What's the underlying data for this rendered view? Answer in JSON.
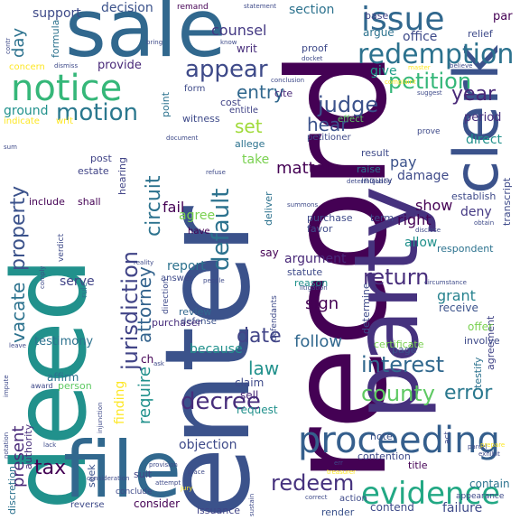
{
  "words": [
    {
      "text": "record",
      "color": "#440154",
      "vertical": true
    },
    {
      "text": "party",
      "color": "#46327e",
      "vertical": true
    },
    {
      "text": "enter",
      "color": "#3b528b",
      "vertical": true
    },
    {
      "text": "deed",
      "color": "#21918c",
      "vertical": true
    },
    {
      "text": "clerk",
      "color": "#3b528b",
      "vertical": true
    },
    {
      "text": "sale",
      "color": "#31688e",
      "vertical": false
    },
    {
      "text": "file",
      "color": "#31688e",
      "vertical": false
    },
    {
      "text": "proceeding",
      "color": "#355f8d",
      "vertical": false
    },
    {
      "text": "evidence",
      "color": "#22a884",
      "vertical": false
    },
    {
      "text": "issue",
      "color": "#31688e",
      "vertical": false
    },
    {
      "text": "notice",
      "color": "#35b779",
      "vertical": false
    },
    {
      "text": "redemption",
      "color": "#2c728e",
      "vertical": false
    },
    {
      "text": "default",
      "color": "#2c728e",
      "vertical": true
    },
    {
      "text": "motion",
      "color": "#2a788e",
      "vertical": false
    },
    {
      "text": "appear",
      "color": "#3e4a89",
      "vertical": false
    },
    {
      "text": "petition",
      "color": "#35b779",
      "vertical": false
    },
    {
      "text": "judge",
      "color": "#3b528b",
      "vertical": false
    },
    {
      "text": "decree",
      "color": "#472d7b",
      "vertical": false
    },
    {
      "text": "jurisdiction",
      "color": "#414487",
      "vertical": true
    },
    {
      "text": "circuit",
      "color": "#2c728e",
      "vertical": true
    },
    {
      "text": "attorney",
      "color": "#33638d",
      "vertical": true
    },
    {
      "text": "county",
      "color": "#5ec962",
      "vertical": false
    },
    {
      "text": "interest",
      "color": "#31688e",
      "vertical": false
    },
    {
      "text": "error",
      "color": "#2a788e",
      "vertical": false
    },
    {
      "text": "redeem",
      "color": "#46327e",
      "vertical": false
    },
    {
      "text": "matter",
      "color": "#440154",
      "vertical": false
    },
    {
      "text": "property",
      "color": "#3b528b",
      "vertical": true
    },
    {
      "text": "vacate",
      "color": "#2c728e",
      "vertical": true
    },
    {
      "text": "entry",
      "color": "#31688e",
      "vertical": false
    },
    {
      "text": "return",
      "color": "#472d7b",
      "vertical": false
    },
    {
      "text": "date",
      "color": "#414487",
      "vertical": false
    },
    {
      "text": "law",
      "color": "#21918c",
      "vertical": false
    },
    {
      "text": "year",
      "color": "#482878",
      "vertical": false
    },
    {
      "text": "set",
      "color": "#a0da39",
      "vertical": false
    },
    {
      "text": "require",
      "color": "#21918c",
      "vertical": true
    },
    {
      "text": "present",
      "color": "#482878",
      "vertical": true
    },
    {
      "text": "tax",
      "color": "#440154",
      "vertical": false
    },
    {
      "text": "section",
      "color": "#2c728e",
      "vertical": false
    },
    {
      "text": "counsel",
      "color": "#443983",
      "vertical": false
    },
    {
      "text": "decision",
      "color": "#3b528b",
      "vertical": false
    },
    {
      "text": "support",
      "color": "#3e4a89",
      "vertical": false
    },
    {
      "text": "day",
      "color": "#2c728e",
      "vertical": true
    },
    {
      "text": "provide",
      "color": "#482878",
      "vertical": false
    },
    {
      "text": "ground",
      "color": "#21918c",
      "vertical": false
    },
    {
      "text": "hear",
      "color": "#3b528b",
      "vertical": false
    },
    {
      "text": "take",
      "color": "#7ad151",
      "vertical": false
    },
    {
      "text": "fail",
      "color": "#440154",
      "vertical": false
    },
    {
      "text": "agree",
      "color": "#7ad151",
      "vertical": false
    },
    {
      "text": "report",
      "color": "#2c728e",
      "vertical": false
    },
    {
      "text": "objection",
      "color": "#3e4a89",
      "vertical": false
    },
    {
      "text": "argument",
      "color": "#482878",
      "vertical": false
    },
    {
      "text": "finding",
      "color": "#fde725",
      "vertical": true
    },
    {
      "text": "testimony",
      "color": "#2c728e",
      "vertical": false
    },
    {
      "text": "serve",
      "color": "#414487",
      "vertical": false
    },
    {
      "text": "because",
      "color": "#21918c",
      "vertical": false
    },
    {
      "text": "follow",
      "color": "#31688e",
      "vertical": false
    },
    {
      "text": "grant",
      "color": "#26828e",
      "vertical": false
    },
    {
      "text": "sign",
      "color": "#440154",
      "vertical": false
    },
    {
      "text": "show",
      "color": "#440154",
      "vertical": false
    },
    {
      "text": "right",
      "color": "#440154",
      "vertical": false
    },
    {
      "text": "allow",
      "color": "#21918c",
      "vertical": false
    },
    {
      "text": "deny",
      "color": "#443983",
      "vertical": false
    },
    {
      "text": "direct",
      "color": "#21918c",
      "vertical": false
    },
    {
      "text": "period",
      "color": "#472d7b",
      "vertical": false
    },
    {
      "text": "damage",
      "color": "#3e4a89",
      "vertical": false
    },
    {
      "text": "pay",
      "color": "#3b528b",
      "vertical": false
    },
    {
      "text": "raise",
      "color": "#2c728e",
      "vertical": false
    },
    {
      "text": "give",
      "color": "#1f9e89",
      "vertical": false
    },
    {
      "text": "office",
      "color": "#3e4a89",
      "vertical": false
    },
    {
      "text": "argue",
      "color": "#2c728e",
      "vertical": false
    },
    {
      "text": "relief",
      "color": "#3e4a89",
      "vertical": false
    },
    {
      "text": "base",
      "color": "#414487",
      "vertical": false
    },
    {
      "text": "par",
      "color": "#440154",
      "vertical": false
    },
    {
      "text": "proof",
      "color": "#3e4a89",
      "vertical": false
    },
    {
      "text": "writ",
      "color": "#472d7b",
      "vertical": false
    },
    {
      "text": "cite",
      "color": "#482878",
      "vertical": false
    },
    {
      "text": "cost",
      "color": "#414487",
      "vertical": false
    },
    {
      "text": "form",
      "color": "#3e4a89",
      "vertical": false
    },
    {
      "text": "entitle",
      "color": "#414487",
      "vertical": false
    },
    {
      "text": "allege",
      "color": "#2c728e",
      "vertical": false
    },
    {
      "text": "witness",
      "color": "#3e4a89",
      "vertical": false
    },
    {
      "text": "point",
      "color": "#2c728e",
      "vertical": true
    },
    {
      "text": "hearing",
      "color": "#414487",
      "vertical": true
    },
    {
      "text": "post",
      "color": "#414487",
      "vertical": false
    },
    {
      "text": "estate",
      "color": "#414487",
      "vertical": false
    },
    {
      "text": "include",
      "color": "#440154",
      "vertical": false
    },
    {
      "text": "shall",
      "color": "#440154",
      "vertical": false
    },
    {
      "text": "have",
      "color": "#440154",
      "vertical": false
    },
    {
      "text": "say",
      "color": "#440154",
      "vertical": false
    },
    {
      "text": "statute",
      "color": "#3e4a89",
      "vertical": false
    },
    {
      "text": "reason",
      "color": "#21918c",
      "vertical": false
    },
    {
      "text": "review",
      "color": "#31688e",
      "vertical": false
    },
    {
      "text": "defense",
      "color": "#3b528b",
      "vertical": false
    },
    {
      "text": "purchaser",
      "color": "#472d7b",
      "vertical": false
    },
    {
      "text": "claim",
      "color": "#3e4a89",
      "vertical": false
    },
    {
      "text": "sell",
      "color": "#482878",
      "vertical": false
    },
    {
      "text": "request",
      "color": "#21918c",
      "vertical": false
    },
    {
      "text": "affirm",
      "color": "#2c728e",
      "vertical": false
    },
    {
      "text": "person",
      "color": "#5ec962",
      "vertical": false
    },
    {
      "text": "suit",
      "color": "#414487",
      "vertical": false
    },
    {
      "text": "seek",
      "color": "#3b528b",
      "vertical": true
    },
    {
      "text": "consider",
      "color": "#440154",
      "vertical": false
    },
    {
      "text": "issuance",
      "color": "#414487",
      "vertical": false
    },
    {
      "text": "render",
      "color": "#3b528b",
      "vertical": false
    },
    {
      "text": "contend",
      "color": "#3e4a89",
      "vertical": false
    },
    {
      "text": "failure",
      "color": "#3e4a89",
      "vertical": false
    },
    {
      "text": "contain",
      "color": "#2c728e",
      "vertical": false
    },
    {
      "text": "title",
      "color": "#440154",
      "vertical": false
    },
    {
      "text": "contention",
      "color": "#3e4a89",
      "vertical": false
    },
    {
      "text": "note",
      "color": "#3b528b",
      "vertical": false
    },
    {
      "text": "page",
      "color": "#3b528b",
      "vertical": false
    },
    {
      "text": "certificate",
      "color": "#7ad151",
      "vertical": false
    },
    {
      "text": "testify",
      "color": "#2c728e",
      "vertical": true
    },
    {
      "text": "agreement",
      "color": "#414487",
      "vertical": true
    },
    {
      "text": "involve",
      "color": "#3e4a89",
      "vertical": false
    },
    {
      "text": "offer",
      "color": "#7ad151",
      "vertical": false
    },
    {
      "text": "receive",
      "color": "#3b528b",
      "vertical": false
    },
    {
      "text": "determine",
      "color": "#3e4a89",
      "vertical": true
    },
    {
      "text": "respondent",
      "color": "#2c728e",
      "vertical": false
    },
    {
      "text": "transcript",
      "color": "#3e4a89",
      "vertical": true
    },
    {
      "text": "establish",
      "color": "#3e4a89",
      "vertical": false
    },
    {
      "text": "term",
      "color": "#3e4a89",
      "vertical": false
    },
    {
      "text": "purchase",
      "color": "#3e4a89",
      "vertical": false
    },
    {
      "text": "favor",
      "color": "#3e4a89",
      "vertical": false
    },
    {
      "text": "deliver",
      "color": "#2c728e",
      "vertical": true
    },
    {
      "text": "result",
      "color": "#3e4a89",
      "vertical": false
    },
    {
      "text": "inquiry",
      "color": "#3e4a89",
      "vertical": false
    },
    {
      "text": "petitioner",
      "color": "#3e4a89",
      "vertical": false
    },
    {
      "text": "effect",
      "color": "#5ec962",
      "vertical": false
    },
    {
      "text": "prove",
      "color": "#3e4a89",
      "vertical": false
    },
    {
      "text": "remand",
      "color": "#440154",
      "vertical": false
    },
    {
      "text": "formula",
      "color": "#2c728e",
      "vertical": true
    },
    {
      "text": "discretion",
      "color": "#2c728e",
      "vertical": true
    },
    {
      "text": "authority",
      "color": "#472d7b",
      "vertical": true
    },
    {
      "text": "reverse",
      "color": "#3e4a89",
      "vertical": false
    },
    {
      "text": "conclude",
      "color": "#3e4a89",
      "vertical": false
    },
    {
      "text": "rule",
      "color": "#2c728e",
      "vertical": true
    },
    {
      "text": "answer",
      "color": "#3e4a89",
      "vertical": false
    },
    {
      "text": "indicate",
      "color": "#fde725",
      "vertical": false
    },
    {
      "text": "writ",
      "color": "#fde725",
      "vertical": false
    },
    {
      "text": "concern",
      "color": "#fde725",
      "vertical": false
    },
    {
      "text": "verdict",
      "color": "#3e4a89",
      "vertical": true
    },
    {
      "text": "ch",
      "color": "#440154",
      "vertical": false
    },
    {
      "text": "defendants",
      "color": "#3e4a89",
      "vertical": true
    },
    {
      "text": "direction",
      "color": "#3e4a89",
      "vertical": true
    },
    {
      "text": "litigation",
      "color": "#3e4a89",
      "vertical": false
    },
    {
      "text": "appearance",
      "color": "#3e4a89",
      "vertical": false
    },
    {
      "text": "parcel",
      "color": "#3e4a89",
      "vertical": false
    },
    {
      "text": "act",
      "color": "#3e4a89",
      "vertical": true
    },
    {
      "text": "docket",
      "color": "#3e4a89",
      "vertical": false
    },
    {
      "text": "conclusion",
      "color": "#3e4a89",
      "vertical": false
    },
    {
      "text": "complaint",
      "color": "#fde725",
      "vertical": false
    },
    {
      "text": "suggest",
      "color": "#3e4a89",
      "vertical": false
    },
    {
      "text": "believe",
      "color": "#3e4a89",
      "vertical": false
    },
    {
      "text": "statement",
      "color": "#3e4a89",
      "vertical": false
    },
    {
      "text": "award",
      "color": "#3e4a89",
      "vertical": false
    },
    {
      "text": "provision",
      "color": "#3e4a89",
      "vertical": false
    },
    {
      "text": "injunction",
      "color": "#3e4a89",
      "vertical": true
    },
    {
      "text": "treasurer",
      "color": "#fde725",
      "vertical": false
    },
    {
      "text": "exhibit",
      "color": "#3e4a89",
      "vertical": false
    },
    {
      "text": "prepare",
      "color": "#fde725",
      "vertical": false
    },
    {
      "text": "refuse",
      "color": "#3e4a89",
      "vertical": false
    },
    {
      "text": "summons",
      "color": "#3e4a89",
      "vertical": false
    },
    {
      "text": "obtain",
      "color": "#3e4a89",
      "vertical": false
    },
    {
      "text": "disclose",
      "color": "#3e4a89",
      "vertical": false
    },
    {
      "text": "circumstance",
      "color": "#3e4a89",
      "vertical": false
    },
    {
      "text": "determination",
      "color": "#3e4a89",
      "vertical": false
    },
    {
      "text": "sustain",
      "color": "#3e4a89",
      "vertical": true
    },
    {
      "text": "people",
      "color": "#3e4a89",
      "vertical": false
    },
    {
      "text": "reality",
      "color": "#3e4a89",
      "vertical": false
    },
    {
      "text": "comply",
      "color": "#3e4a89",
      "vertical": true
    },
    {
      "text": "leave",
      "color": "#3e4a89",
      "vertical": false
    },
    {
      "text": "ask",
      "color": "#3e4a89",
      "vertical": false
    },
    {
      "text": "dismiss",
      "color": "#3e4a89",
      "vertical": false
    },
    {
      "text": "attempt",
      "color": "#3e4a89",
      "vertical": false
    },
    {
      "text": "place",
      "color": "#3e4a89",
      "vertical": false
    },
    {
      "text": "jury",
      "color": "#fde725",
      "vertical": false
    },
    {
      "text": "lack",
      "color": "#3e4a89",
      "vertical": false
    },
    {
      "text": "err",
      "color": "#3e4a89",
      "vertical": false
    },
    {
      "text": "correct",
      "color": "#3e4a89",
      "vertical": false
    },
    {
      "text": "action",
      "color": "#3e4a89",
      "vertical": false
    },
    {
      "text": "sum",
      "color": "#3e4a89",
      "vertical": false
    },
    {
      "text": "document",
      "color": "#3e4a89",
      "vertical": false
    },
    {
      "text": "master",
      "color": "#fde725",
      "vertical": false
    },
    {
      "text": "bring",
      "color": "#3e4a89",
      "vertical": false
    },
    {
      "text": "contr",
      "color": "#3e4a89",
      "vertical": true
    },
    {
      "text": "notation",
      "color": "#3e4a89",
      "vertical": true
    },
    {
      "text": "impute",
      "color": "#3e4a89",
      "vertical": true
    },
    {
      "text": "consideration",
      "color": "#3e4a89",
      "vertical": false
    },
    {
      "text": "know",
      "color": "#3e4a89",
      "vertical": false
    }
  ]
}
